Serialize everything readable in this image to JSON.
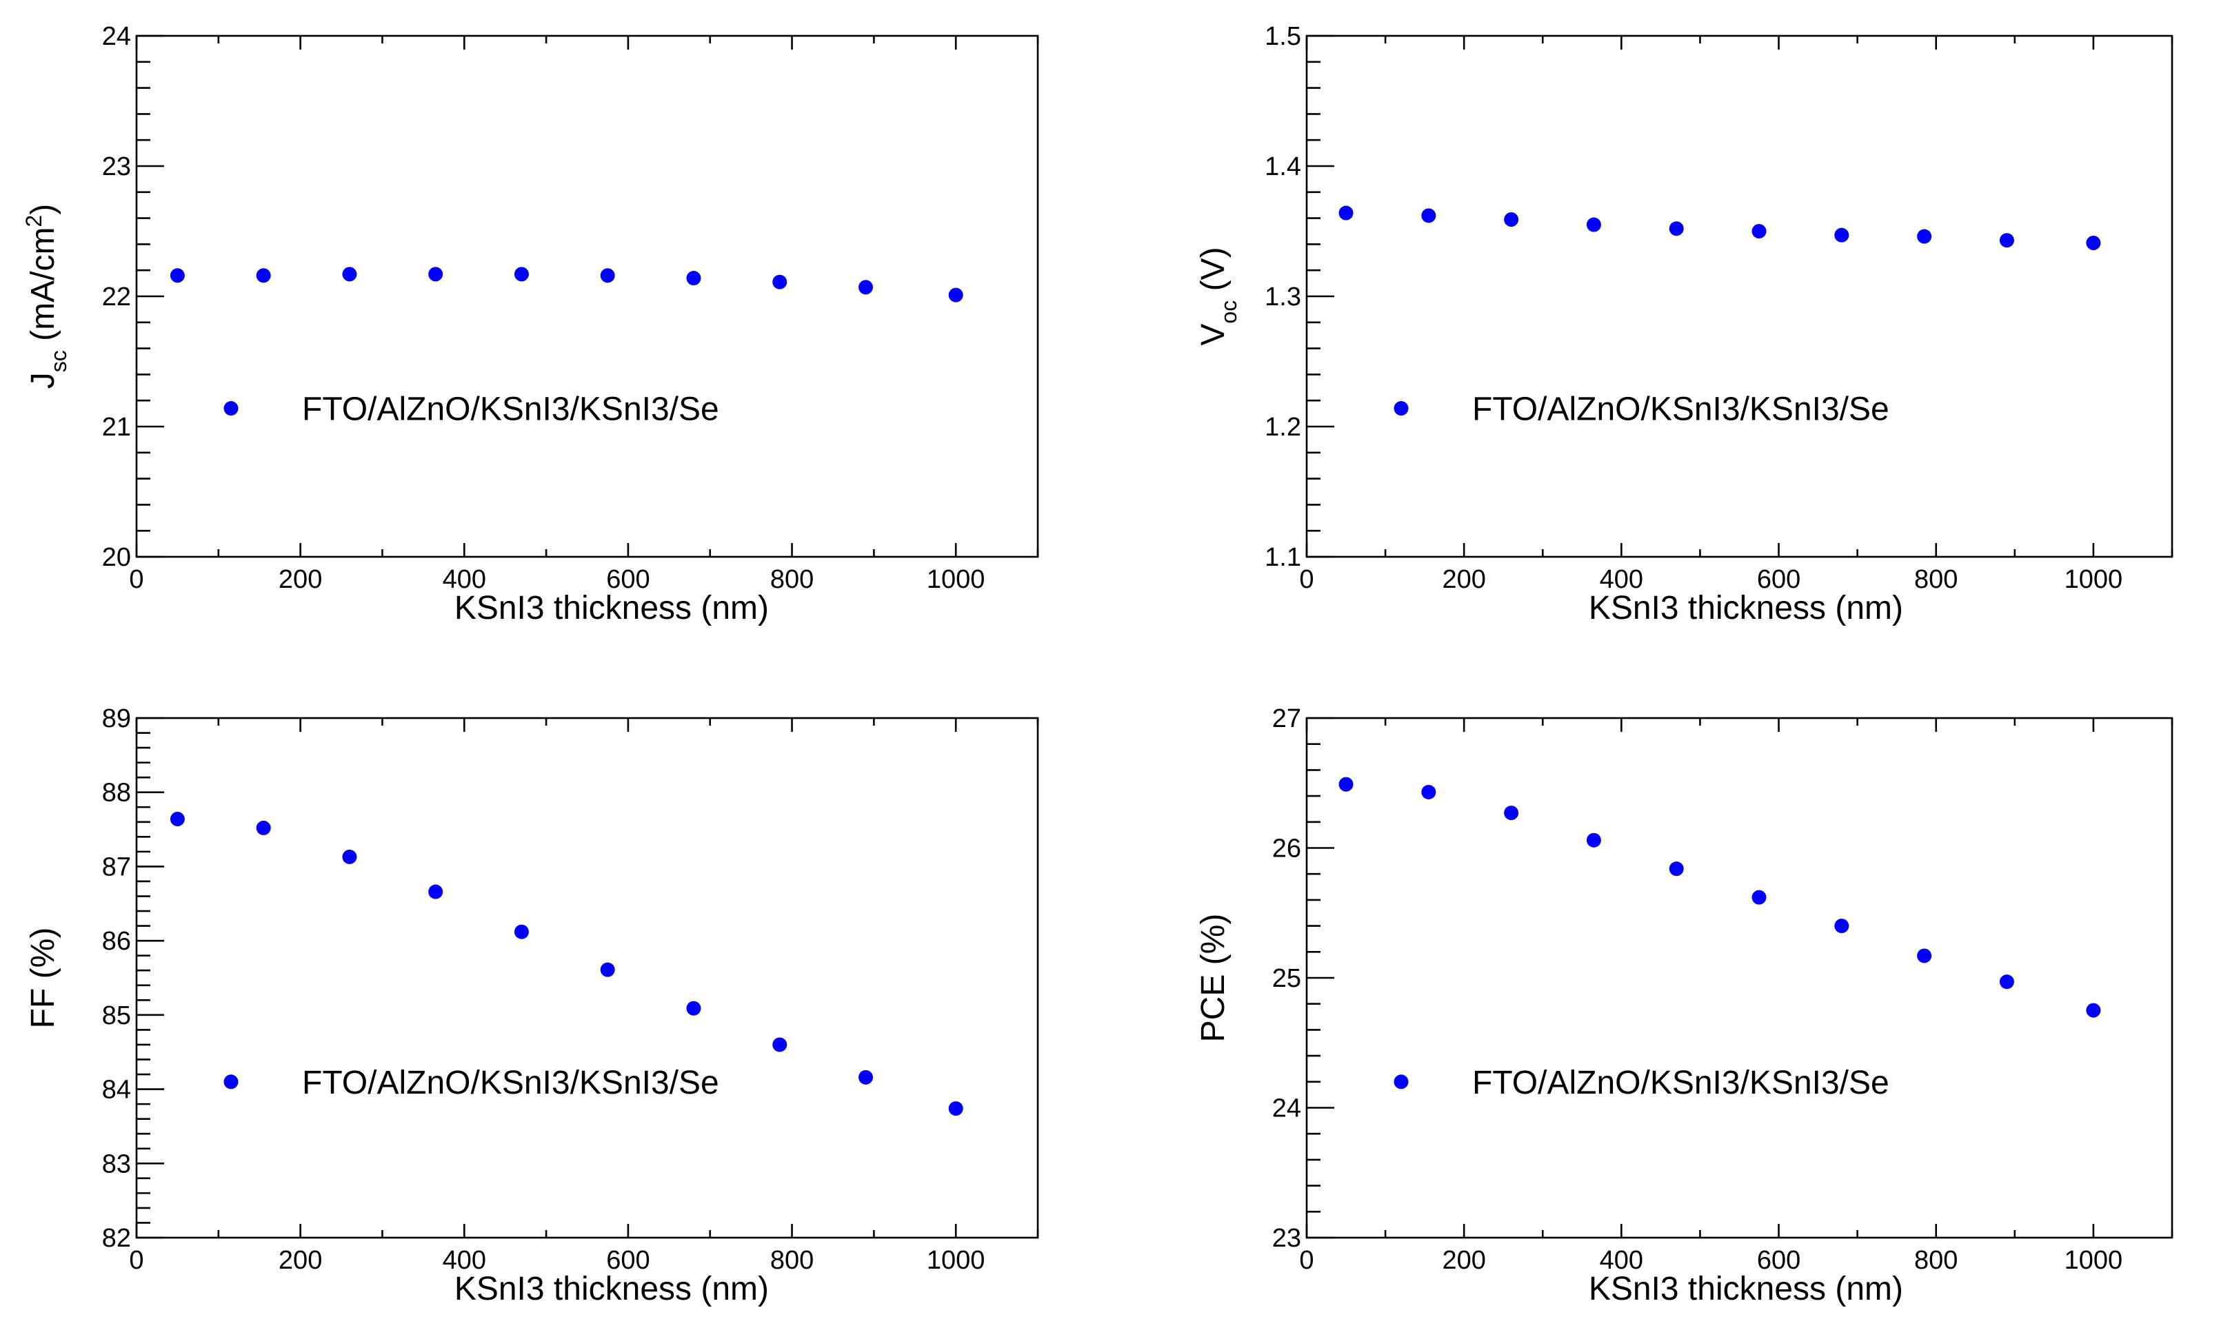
{
  "chart_data": [
    {
      "type": "scatter",
      "xlabel": "KSnI3 thickness (nm)",
      "ylabel": {
        "base": "J",
        "sub": "sc",
        "unit_pre": " (mA/cm",
        "sup": "2",
        "unit_post": ")"
      },
      "xlim": [
        0,
        1100
      ],
      "ylim": [
        20,
        24
      ],
      "xticks": [
        0,
        200,
        400,
        600,
        800,
        1000
      ],
      "xtick_labels": [
        "0",
        "200",
        "400",
        "600",
        "800",
        "1000"
      ],
      "yticks": [
        20,
        21,
        22,
        23,
        24
      ],
      "ytick_labels": [
        "20",
        "21",
        "22",
        "23",
        "24"
      ],
      "legend_position": "middle-left",
      "series": [
        {
          "name": "FTO/AlZnO/KSnI3/KSnI3/Se",
          "color": "#0000ff",
          "x": [
            50,
            155,
            260,
            365,
            470,
            575,
            680,
            785,
            890,
            1000
          ],
          "y": [
            22.16,
            22.16,
            22.17,
            22.17,
            22.17,
            22.16,
            22.14,
            22.11,
            22.07,
            22.01
          ]
        }
      ]
    },
    {
      "type": "scatter",
      "xlabel": "KSnI3 thickness (nm)",
      "ylabel": {
        "base": "V",
        "sub": "oc",
        "unit_pre": " (V)",
        "sup": "",
        "unit_post": ""
      },
      "xlim": [
        0,
        1100
      ],
      "ylim": [
        1.1,
        1.5
      ],
      "xticks": [
        0,
        200,
        400,
        600,
        800,
        1000
      ],
      "xtick_labels": [
        "0",
        "200",
        "400",
        "600",
        "800",
        "1000"
      ],
      "yticks": [
        1.1,
        1.2,
        1.3,
        1.4,
        1.5
      ],
      "ytick_labels": [
        "1.1",
        "1.2",
        "1.3",
        "1.4",
        "1.5"
      ],
      "legend_position": "middle-left",
      "series": [
        {
          "name": "FTO/AlZnO/KSnI3/KSnI3/Se",
          "color": "#0000ff",
          "x": [
            50,
            155,
            260,
            365,
            470,
            575,
            680,
            785,
            890,
            1000
          ],
          "y": [
            1.364,
            1.362,
            1.359,
            1.355,
            1.352,
            1.35,
            1.347,
            1.346,
            1.343,
            1.341
          ]
        }
      ]
    },
    {
      "type": "scatter",
      "xlabel": "KSnI3 thickness (nm)",
      "ylabel": {
        "base": "FF (%)",
        "sub": "",
        "unit_pre": "",
        "sup": "",
        "unit_post": ""
      },
      "xlim": [
        0,
        1100
      ],
      "ylim": [
        82,
        89
      ],
      "xticks": [
        0,
        200,
        400,
        600,
        800,
        1000
      ],
      "xtick_labels": [
        "0",
        "200",
        "400",
        "600",
        "800",
        "1000"
      ],
      "yticks": [
        82,
        83,
        84,
        85,
        86,
        87,
        88,
        89
      ],
      "ytick_labels": [
        "82",
        "83",
        "84",
        "85",
        "86",
        "87",
        "88",
        "89"
      ],
      "legend_position": "bottom-left",
      "series": [
        {
          "name": "FTO/AlZnO/KSnI3/KSnI3/Se",
          "color": "#0000ff",
          "x": [
            50,
            155,
            260,
            365,
            470,
            575,
            680,
            785,
            890,
            1000
          ],
          "y": [
            87.64,
            87.52,
            87.13,
            86.66,
            86.12,
            85.61,
            85.09,
            84.6,
            84.16,
            83.74
          ]
        }
      ]
    },
    {
      "type": "scatter",
      "xlabel": "KSnI3 thickness (nm)",
      "ylabel": {
        "base": "PCE (%)",
        "sub": "",
        "unit_pre": "",
        "sup": "",
        "unit_post": ""
      },
      "xlim": [
        0,
        1100
      ],
      "ylim": [
        23,
        27
      ],
      "xticks": [
        0,
        200,
        400,
        600,
        800,
        1000
      ],
      "xtick_labels": [
        "0",
        "200",
        "400",
        "600",
        "800",
        "1000"
      ],
      "yticks": [
        23,
        24,
        25,
        26,
        27
      ],
      "ytick_labels": [
        "23",
        "24",
        "25",
        "26",
        "27"
      ],
      "legend_position": "bottom-left",
      "series": [
        {
          "name": "FTO/AlZnO/KSnI3/KSnI3/Se",
          "color": "#0000ff",
          "x": [
            50,
            155,
            260,
            365,
            470,
            575,
            680,
            785,
            890,
            1000
          ],
          "y": [
            26.49,
            26.43,
            26.27,
            26.06,
            25.84,
            25.62,
            25.4,
            25.17,
            24.97,
            24.75
          ]
        }
      ]
    }
  ]
}
